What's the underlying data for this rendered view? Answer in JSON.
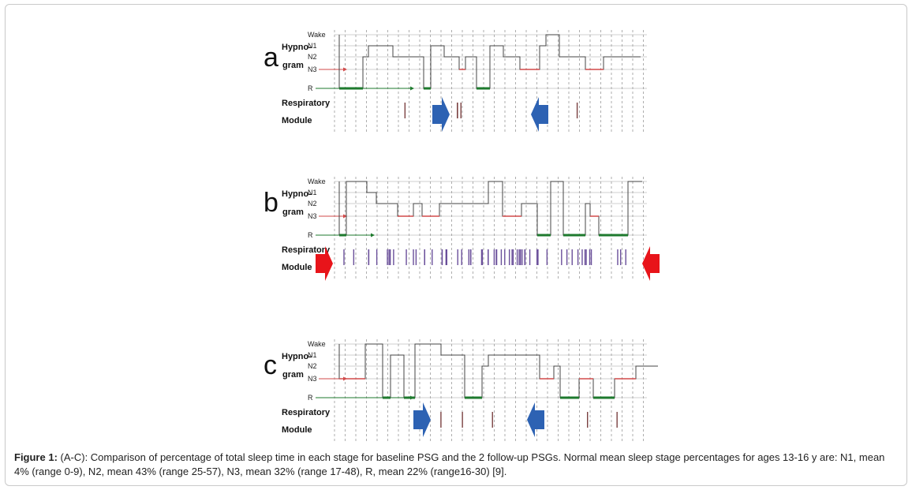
{
  "figure": {
    "panels": [
      {
        "letter": "a",
        "stage_labels": [
          "Wake",
          "N1",
          "N2",
          "N3",
          "R"
        ],
        "hypnogram_label": [
          "Hypno-",
          "gram"
        ],
        "respiratory_label": [
          "Respiratory",
          "Module"
        ],
        "arrow_color": "#2d62b3"
      },
      {
        "letter": "b",
        "stage_labels": [
          "Wake",
          "N1",
          "N2",
          "N3",
          "R"
        ],
        "hypnogram_label": [
          "Hypno-",
          "gram"
        ],
        "respiratory_label": [
          "Respiratory",
          "Module"
        ],
        "arrow_color": "#e8141a"
      },
      {
        "letter": "c",
        "stage_labels": [
          "Wake",
          "N1",
          "N2",
          "N3",
          "R"
        ],
        "hypnogram_label": [
          "Hypno-",
          "gram"
        ],
        "respiratory_label": [
          "Respiratory",
          "Module"
        ],
        "arrow_color": "#2d62b3"
      }
    ],
    "colors": {
      "rem": "#1e7a2e",
      "n3": "#d24a4a",
      "trace": "#444444",
      "grid": "#cfcfcf"
    }
  },
  "caption": {
    "label": "Figure 1:",
    "text": " (A-C): Comparison of percentage of total sleep time in each stage for baseline PSG and the 2 follow-up PSGs. Normal mean sleep stage percentages for ages 13-16 y are: N1, mean 4% (range 0-9), N2, mean 43% (range 25-57), N3, mean 32% (range 17-48), R, mean 22% (range16-30) [9]."
  }
}
